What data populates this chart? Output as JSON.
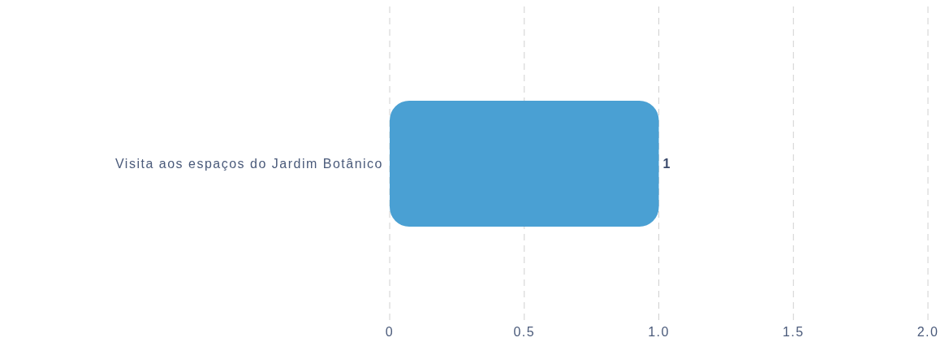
{
  "chart_data": {
    "type": "bar",
    "orientation": "horizontal",
    "categories": [
      "Visita aos espaços do Jardim Botânico"
    ],
    "values": [
      1
    ],
    "color": "#4aa0d3",
    "xlim": [
      0,
      2
    ],
    "xticks": [
      0,
      0.5,
      {
        "value": 1,
        "label": "1.0"
      },
      1.5,
      {
        "value": 2,
        "label": "2.0"
      }
    ],
    "grid": "x",
    "data_labels": true
  }
}
